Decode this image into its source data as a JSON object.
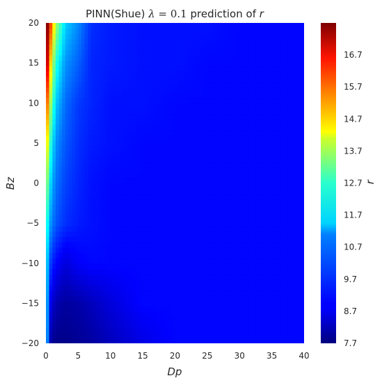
{
  "chart_data": {
    "type": "heatmap",
    "title": {
      "prefix": "PINN(Shue) ",
      "lambda_symbol": "λ",
      "equals": " = 0.1",
      "suffix": " prediction of ",
      "variable": "r"
    },
    "xlabel": "Dp",
    "ylabel": "Bz",
    "colorbar_label": "r",
    "xlim": [
      0,
      40
    ],
    "ylim": [
      -20,
      20
    ],
    "x_ticks": [
      0,
      5,
      10,
      15,
      20,
      25,
      30,
      35,
      40
    ],
    "x_tick_labels": [
      "0",
      "5",
      "10",
      "15",
      "20",
      "25",
      "30",
      "35",
      "40"
    ],
    "y_ticks": [
      20,
      15,
      10,
      5,
      0,
      -5,
      -10,
      -15,
      -20
    ],
    "y_tick_labels": [
      "20",
      "15",
      "10",
      "5",
      "0",
      "−5",
      "−10",
      "−15",
      "−20"
    ],
    "colorbar_range": [
      7.7,
      17.7
    ],
    "colorbar_ticks": [
      16.7,
      15.7,
      14.7,
      13.7,
      12.7,
      11.7,
      10.7,
      9.7,
      8.7,
      7.7
    ],
    "colorbar_tick_labels": [
      "16.7",
      "15.7",
      "14.7",
      "13.7",
      "12.7",
      "11.7",
      "10.7",
      "9.7",
      "8.7",
      "7.7"
    ],
    "colormap": "jet",
    "grid": false,
    "field_samples": {
      "dp": [
        0.3,
        0.8,
        1.5,
        3,
        5,
        7,
        10,
        15,
        20,
        25,
        30,
        35,
        40
      ],
      "bz_rows": [
        {
          "bz": 20,
          "r": [
            17.6,
            15.6,
            13.2,
            11.0,
            10.3,
            9.4,
            9.2,
            9.1,
            9.1,
            9.1,
            9.0,
            9.0,
            9.0
          ]
        },
        {
          "bz": 15,
          "r": [
            16.8,
            14.0,
            11.8,
            10.4,
            9.9,
            9.3,
            9.2,
            9.1,
            9.1,
            9.0,
            9.0,
            9.0,
            9.0
          ]
        },
        {
          "bz": 10,
          "r": [
            15.2,
            12.8,
            11.0,
            10.0,
            9.5,
            9.3,
            9.1,
            9.1,
            9.0,
            9.0,
            9.0,
            9.0,
            9.0
          ]
        },
        {
          "bz": 5,
          "r": [
            13.8,
            11.6,
            10.4,
            9.8,
            9.4,
            9.2,
            9.1,
            9.0,
            9.0,
            9.0,
            9.0,
            9.0,
            9.0
          ]
        },
        {
          "bz": 0,
          "r": [
            12.5,
            10.9,
            10.1,
            9.6,
            9.3,
            9.1,
            9.0,
            9.0,
            9.0,
            9.0,
            9.0,
            9.0,
            9.0
          ]
        },
        {
          "bz": -5,
          "r": [
            11.5,
            10.3,
            9.8,
            9.4,
            9.2,
            9.1,
            9.0,
            9.0,
            9.0,
            9.0,
            9.0,
            9.0,
            9.0
          ]
        },
        {
          "bz": -10,
          "r": [
            10.8,
            9.4,
            9.0,
            8.6,
            8.9,
            9.0,
            9.0,
            9.0,
            9.0,
            9.0,
            9.0,
            9.0,
            9.0
          ]
        },
        {
          "bz": -15,
          "r": [
            10.4,
            8.6,
            8.2,
            8.0,
            8.1,
            8.3,
            8.6,
            9.0,
            9.0,
            9.0,
            9.0,
            9.0,
            9.0
          ]
        },
        {
          "bz": -20,
          "r": [
            10.2,
            7.9,
            7.8,
            7.8,
            7.9,
            8.0,
            8.3,
            8.7,
            9.0,
            9.0,
            9.0,
            9.0,
            9.0
          ]
        }
      ]
    }
  }
}
